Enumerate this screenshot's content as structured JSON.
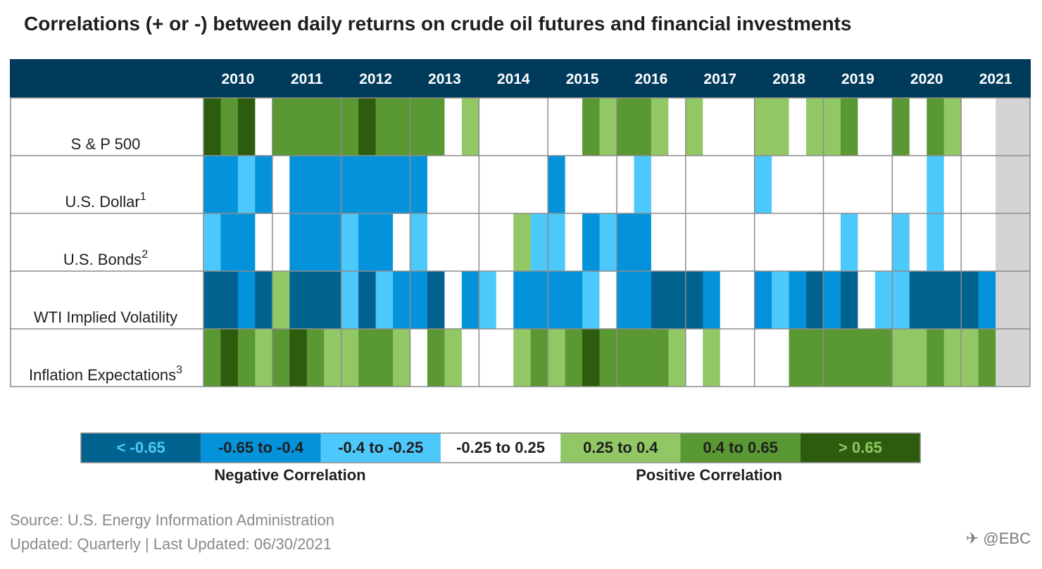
{
  "title": "Correlations (+ or -) between daily returns on crude oil futures and financial investments",
  "source": "Source: U.S. Energy Information Administration",
  "updated": "Updated: Quarterly | Last Updated: 06/30/2021",
  "watermark": "@EBC",
  "colors": {
    "header": "#003b5c",
    "bins": [
      "#01628f",
      "#0493da",
      "#4dc8fb",
      "#ffffff",
      "#91c865",
      "#5a9833",
      "#2e5c0e"
    ],
    "no_data": "#d4d4d4"
  },
  "chart_data": {
    "type": "heatmap",
    "title": "Correlations (+ or -) between daily returns on crude oil futures and financial investments",
    "x": [
      "2010",
      "2011",
      "2012",
      "2013",
      "2014",
      "2015",
      "2016",
      "2017",
      "2018",
      "2019",
      "2020",
      "2021"
    ],
    "periods_per_year": 4,
    "bin_note": "cell value = bin index 0..6 into legend; null = no data",
    "rows": [
      {
        "label": "S & P 500",
        "sup": "",
        "bins": [
          6,
          5,
          6,
          3,
          5,
          5,
          5,
          5,
          5,
          6,
          5,
          5,
          5,
          5,
          3,
          4,
          3,
          3,
          3,
          3,
          3,
          3,
          5,
          4,
          5,
          5,
          4,
          3,
          4,
          3,
          3,
          3,
          4,
          4,
          3,
          4,
          4,
          5,
          3,
          3,
          5,
          3,
          5,
          4,
          3,
          3,
          null,
          null
        ]
      },
      {
        "label": "U.S. Dollar",
        "sup": "1",
        "bins": [
          1,
          1,
          2,
          1,
          3,
          1,
          1,
          1,
          1,
          1,
          1,
          1,
          1,
          3,
          3,
          3,
          3,
          3,
          3,
          3,
          1,
          3,
          3,
          3,
          3,
          2,
          3,
          3,
          3,
          3,
          3,
          3,
          2,
          3,
          3,
          3,
          3,
          3,
          3,
          3,
          3,
          3,
          2,
          3,
          3,
          3,
          null,
          null
        ]
      },
      {
        "label": "U.S. Bonds",
        "sup": "2",
        "bins": [
          2,
          1,
          1,
          3,
          3,
          1,
          1,
          1,
          2,
          1,
          1,
          3,
          2,
          3,
          3,
          3,
          3,
          3,
          4,
          2,
          2,
          3,
          1,
          2,
          1,
          1,
          3,
          3,
          3,
          3,
          3,
          3,
          3,
          3,
          3,
          3,
          3,
          2,
          3,
          3,
          2,
          3,
          2,
          3,
          3,
          3,
          null,
          null
        ]
      },
      {
        "label": "WTI Implied Volatility",
        "sup": "",
        "bins": [
          0,
          0,
          1,
          0,
          4,
          0,
          0,
          0,
          2,
          0,
          2,
          1,
          1,
          0,
          3,
          1,
          2,
          3,
          1,
          1,
          1,
          1,
          2,
          3,
          1,
          1,
          0,
          0,
          0,
          1,
          3,
          3,
          1,
          2,
          1,
          0,
          1,
          0,
          3,
          2,
          2,
          0,
          0,
          0,
          0,
          1,
          null,
          null
        ]
      },
      {
        "label": "Inflation Expectations",
        "sup": "3",
        "bins": [
          5,
          6,
          5,
          4,
          5,
          6,
          5,
          4,
          4,
          5,
          5,
          4,
          3,
          5,
          4,
          3,
          3,
          3,
          4,
          5,
          4,
          5,
          6,
          5,
          5,
          5,
          5,
          4,
          3,
          4,
          3,
          3,
          3,
          3,
          5,
          5,
          5,
          5,
          5,
          5,
          4,
          4,
          5,
          4,
          4,
          5,
          null,
          null
        ]
      }
    ],
    "legend": [
      {
        "label": "< -0.65",
        "text_color": "#4dc8fb"
      },
      {
        "label": "-0.65 to -0.4",
        "text_color": "#1f1f1f"
      },
      {
        "label": "-0.4 to -0.25",
        "text_color": "#1f1f1f"
      },
      {
        "label": "-0.25 to 0.25",
        "text_color": "#1f1f1f"
      },
      {
        "label": "0.25 to 0.4",
        "text_color": "#1f1f1f"
      },
      {
        "label": "0.4 to 0.65",
        "text_color": "#1f1f1f"
      },
      {
        "label": "> 0.65",
        "text_color": "#91c865"
      }
    ],
    "legend_groups": {
      "negative": "Negative Correlation",
      "positive": "Positive Correlation"
    }
  }
}
